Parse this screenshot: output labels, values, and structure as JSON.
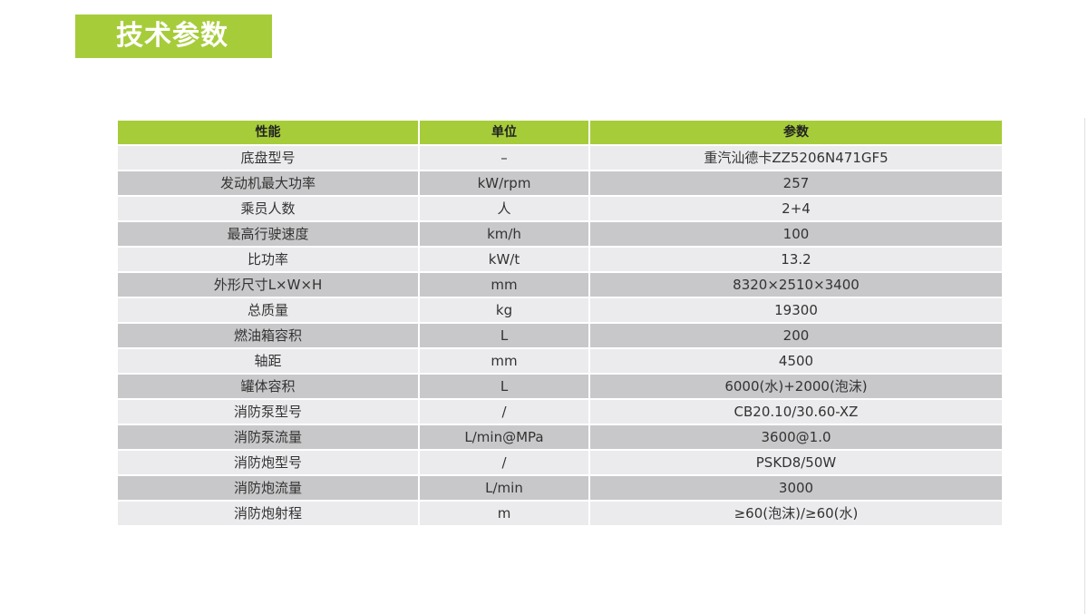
{
  "title": "技术参数",
  "colors": {
    "accent": "#a6cc3a",
    "row_light": "#ebebed",
    "row_dark": "#c8c8ca"
  },
  "table": {
    "headers": [
      "性能",
      "单位",
      "参数"
    ],
    "rows": [
      [
        "底盘型号",
        "–",
        "重汽汕德卡ZZ5206N471GF5"
      ],
      [
        "发动机最大功率",
        "kW/rpm",
        "257"
      ],
      [
        "乘员人数",
        "人",
        "2+4"
      ],
      [
        "最高行驶速度",
        "km/h",
        "100"
      ],
      [
        "比功率",
        "kW/t",
        "13.2"
      ],
      [
        "外形尺寸L×W×H",
        "mm",
        "8320×2510×3400"
      ],
      [
        "总质量",
        "kg",
        "19300"
      ],
      [
        "燃油箱容积",
        "L",
        "200"
      ],
      [
        "轴距",
        "mm",
        "4500"
      ],
      [
        "罐体容积",
        "L",
        "6000(水)+2000(泡沫)"
      ],
      [
        "消防泵型号",
        "/",
        "CB20.10/30.60-XZ"
      ],
      [
        "消防泵流量",
        "L/min@MPa",
        "3600@1.0"
      ],
      [
        "消防炮型号",
        "/",
        "PSKD8/50W"
      ],
      [
        "消防炮流量",
        "L/min",
        "3000"
      ],
      [
        "消防炮射程",
        "m",
        "≥60(泡沫)/≥60(水)"
      ]
    ]
  }
}
